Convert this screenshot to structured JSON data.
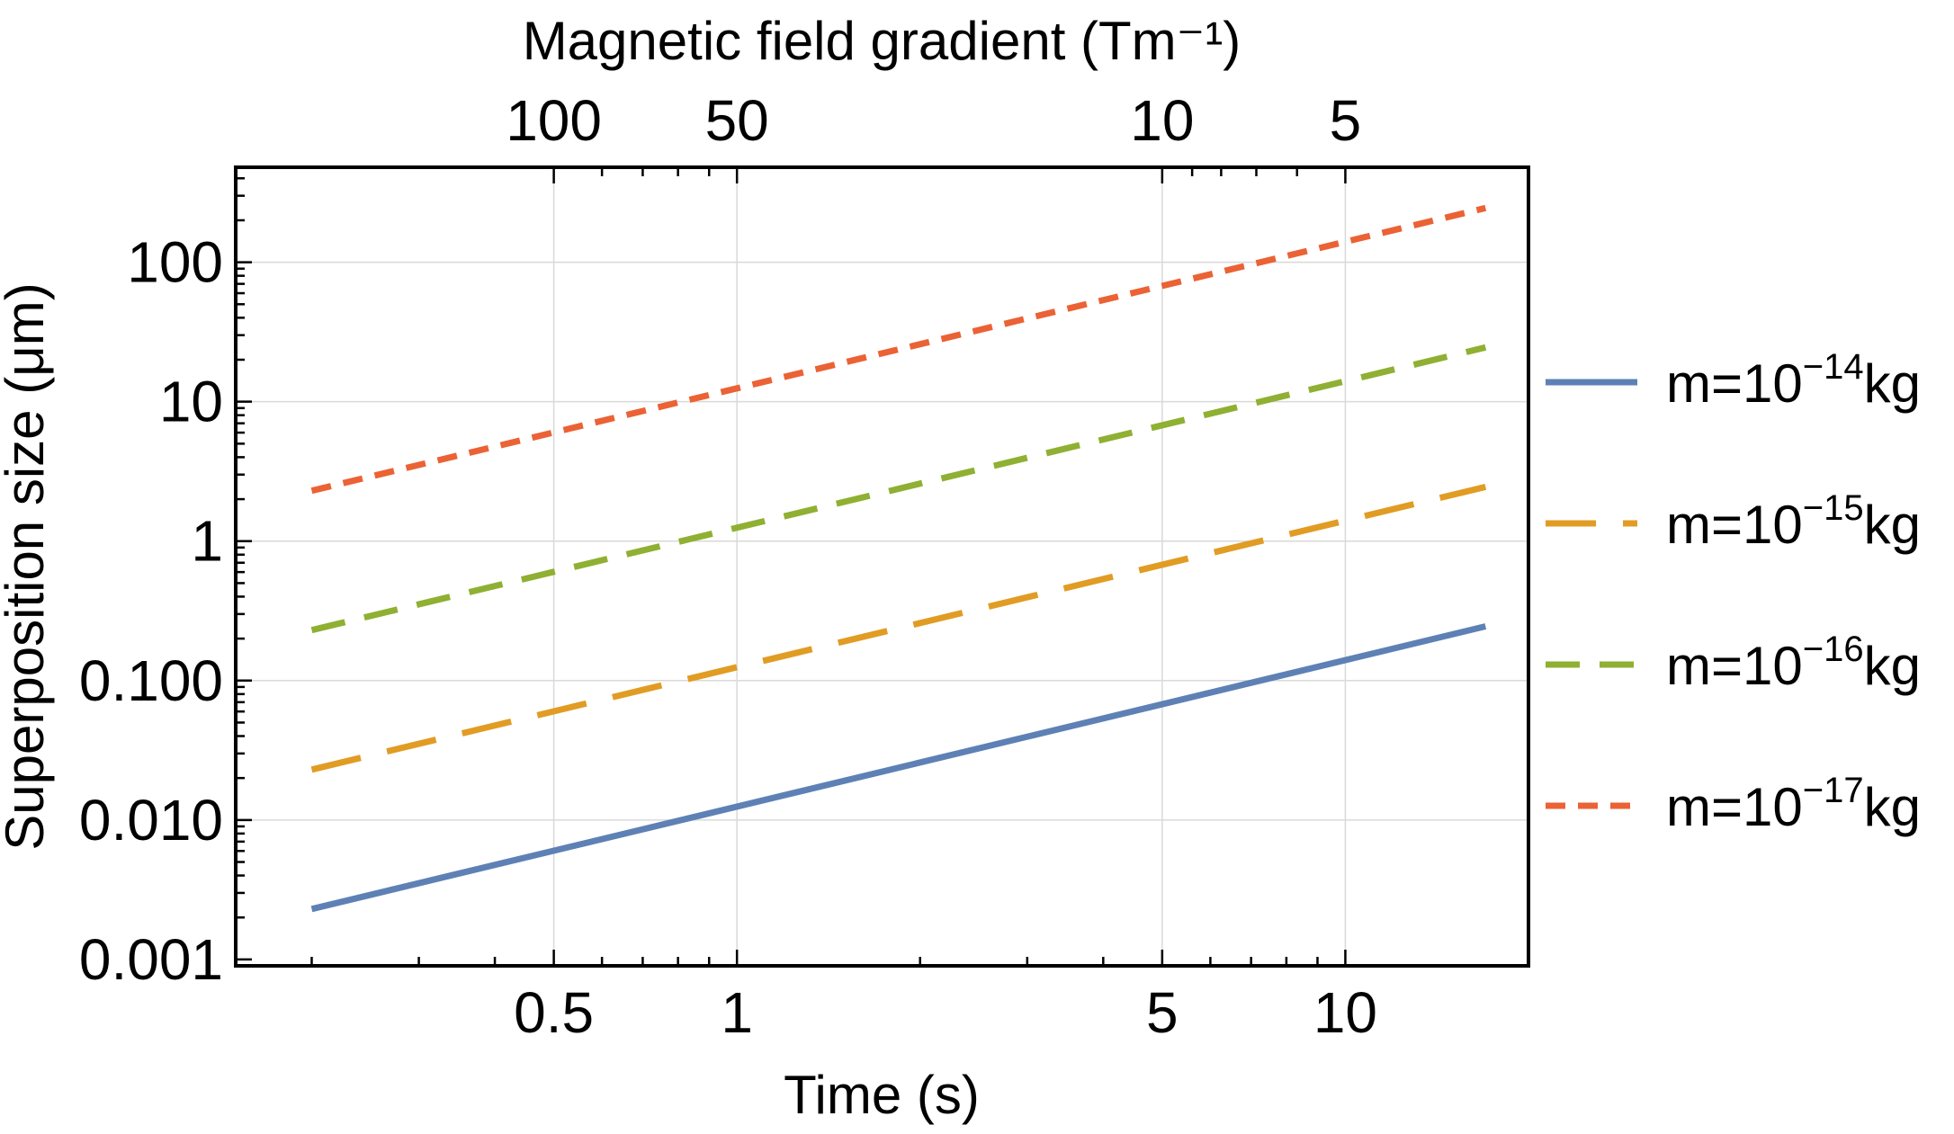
{
  "chart_data": {
    "type": "line",
    "scale": {
      "x": "log",
      "y": "log"
    },
    "title": "",
    "xlabel": "Time (s)",
    "ylabel": "Superposition size (μm)",
    "x2label": "Magnetic field gradient (Tm⁻¹)",
    "xlim": [
      0.15,
      20
    ],
    "ylim": [
      0.0009,
      480
    ],
    "grid": true,
    "legend_position": "right",
    "x_major_ticks": [
      {
        "value": 0.5,
        "label": "0.5"
      },
      {
        "value": 1,
        "label": "1"
      },
      {
        "value": 5,
        "label": "5"
      },
      {
        "value": 10,
        "label": "10"
      }
    ],
    "x_minor_ticks": [
      0.2,
      0.3,
      0.4,
      0.6,
      0.7,
      0.8,
      0.9,
      2,
      3,
      4,
      6,
      7,
      8,
      9,
      20
    ],
    "x_gridlines": [
      0.5,
      1,
      5,
      10
    ],
    "y_major_ticks": [
      {
        "value": 0.001,
        "label": "0.001"
      },
      {
        "value": 0.01,
        "label": "0.010"
      },
      {
        "value": 0.1,
        "label": "0.100"
      },
      {
        "value": 1,
        "label": "1"
      },
      {
        "value": 10,
        "label": "10"
      },
      {
        "value": 100,
        "label": "100"
      }
    ],
    "y_gridlines": [
      0.01,
      0.1,
      1,
      10,
      100
    ],
    "x2_ticks": [
      {
        "gradient": 100,
        "time": 0.5,
        "label": "100"
      },
      {
        "gradient": 50,
        "time": 1,
        "label": "50"
      },
      {
        "gradient": 10,
        "time": 5,
        "label": "10"
      },
      {
        "gradient": 5,
        "time": 10,
        "label": "5"
      }
    ],
    "x2_minor_ticks_time": [
      0.6,
      0.7,
      0.8,
      0.9,
      5.6,
      6.25,
      7.14,
      8.33
    ],
    "series": [
      {
        "name": "m=10⁻¹⁴kg",
        "label_base": "m=10",
        "label_exp": "−14",
        "label_unit": "kg",
        "color": "#5E81B5",
        "dash": "solid",
        "x": [
          0.2,
          17
        ],
        "y": [
          0.0023,
          0.245
        ]
      },
      {
        "name": "m=10⁻¹⁵kg",
        "label_base": "m=10",
        "label_exp": "−15",
        "label_unit": "kg",
        "color": "#E19C24",
        "dash": "long",
        "x": [
          0.2,
          17
        ],
        "y": [
          0.023,
          2.45
        ]
      },
      {
        "name": "m=10⁻¹⁶kg",
        "label_base": "m=10",
        "label_exp": "−16",
        "label_unit": "kg",
        "color": "#8FB032",
        "dash": "medium",
        "x": [
          0.2,
          17
        ],
        "y": [
          0.23,
          24.5
        ]
      },
      {
        "name": "m=10⁻¹⁷kg",
        "label_base": "m=10",
        "label_exp": "−17",
        "label_unit": "kg",
        "color": "#EB6235",
        "dash": "short",
        "x": [
          0.2,
          17
        ],
        "y": [
          2.3,
          245
        ]
      }
    ]
  }
}
